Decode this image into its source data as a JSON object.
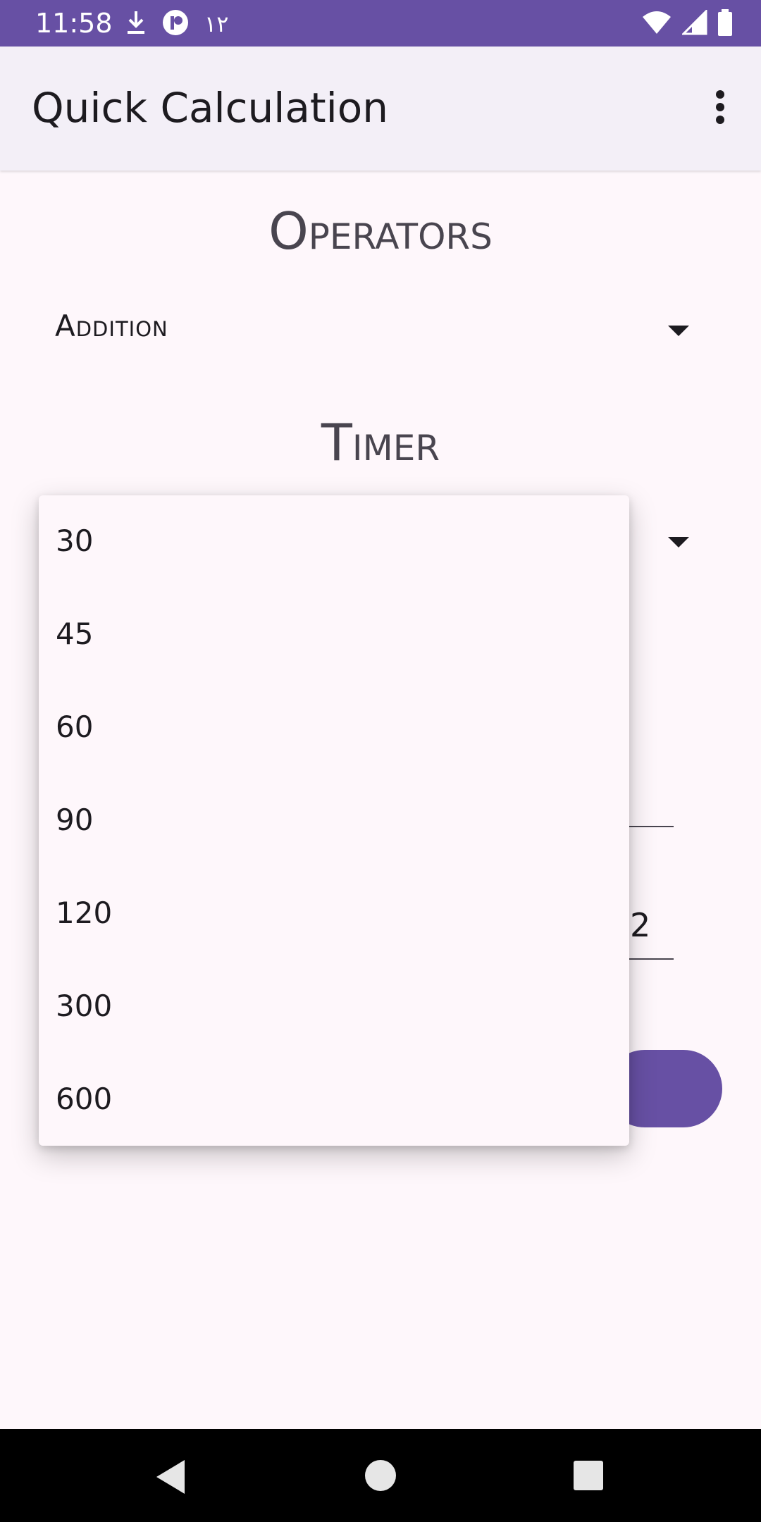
{
  "status_bar": {
    "time": "11:58",
    "arabic_text": "١٢",
    "background": "#6750a4",
    "icons_left": [
      "download-icon",
      "app-notification-icon"
    ],
    "icons_right": [
      "wifi-icon",
      "cell-signal-icon",
      "battery-icon"
    ]
  },
  "app_bar": {
    "title": "Quick Calculation",
    "menu_icon": "more-vert-icon"
  },
  "operators": {
    "title": "Operators",
    "selected": "Addition"
  },
  "timer": {
    "title": "Timer",
    "options": [
      "30",
      "45",
      "60",
      "90",
      "120",
      "300",
      "600"
    ]
  },
  "background_fields": {
    "second_value": "2"
  },
  "colors": {
    "primary": "#6750a4",
    "surface": "#fef7fb",
    "app_bar": "#f3eff7"
  },
  "nav_bar": {
    "back_icon": "back-triangle-icon",
    "home_icon": "home-circle-icon",
    "recents_icon": "recents-square-icon"
  }
}
